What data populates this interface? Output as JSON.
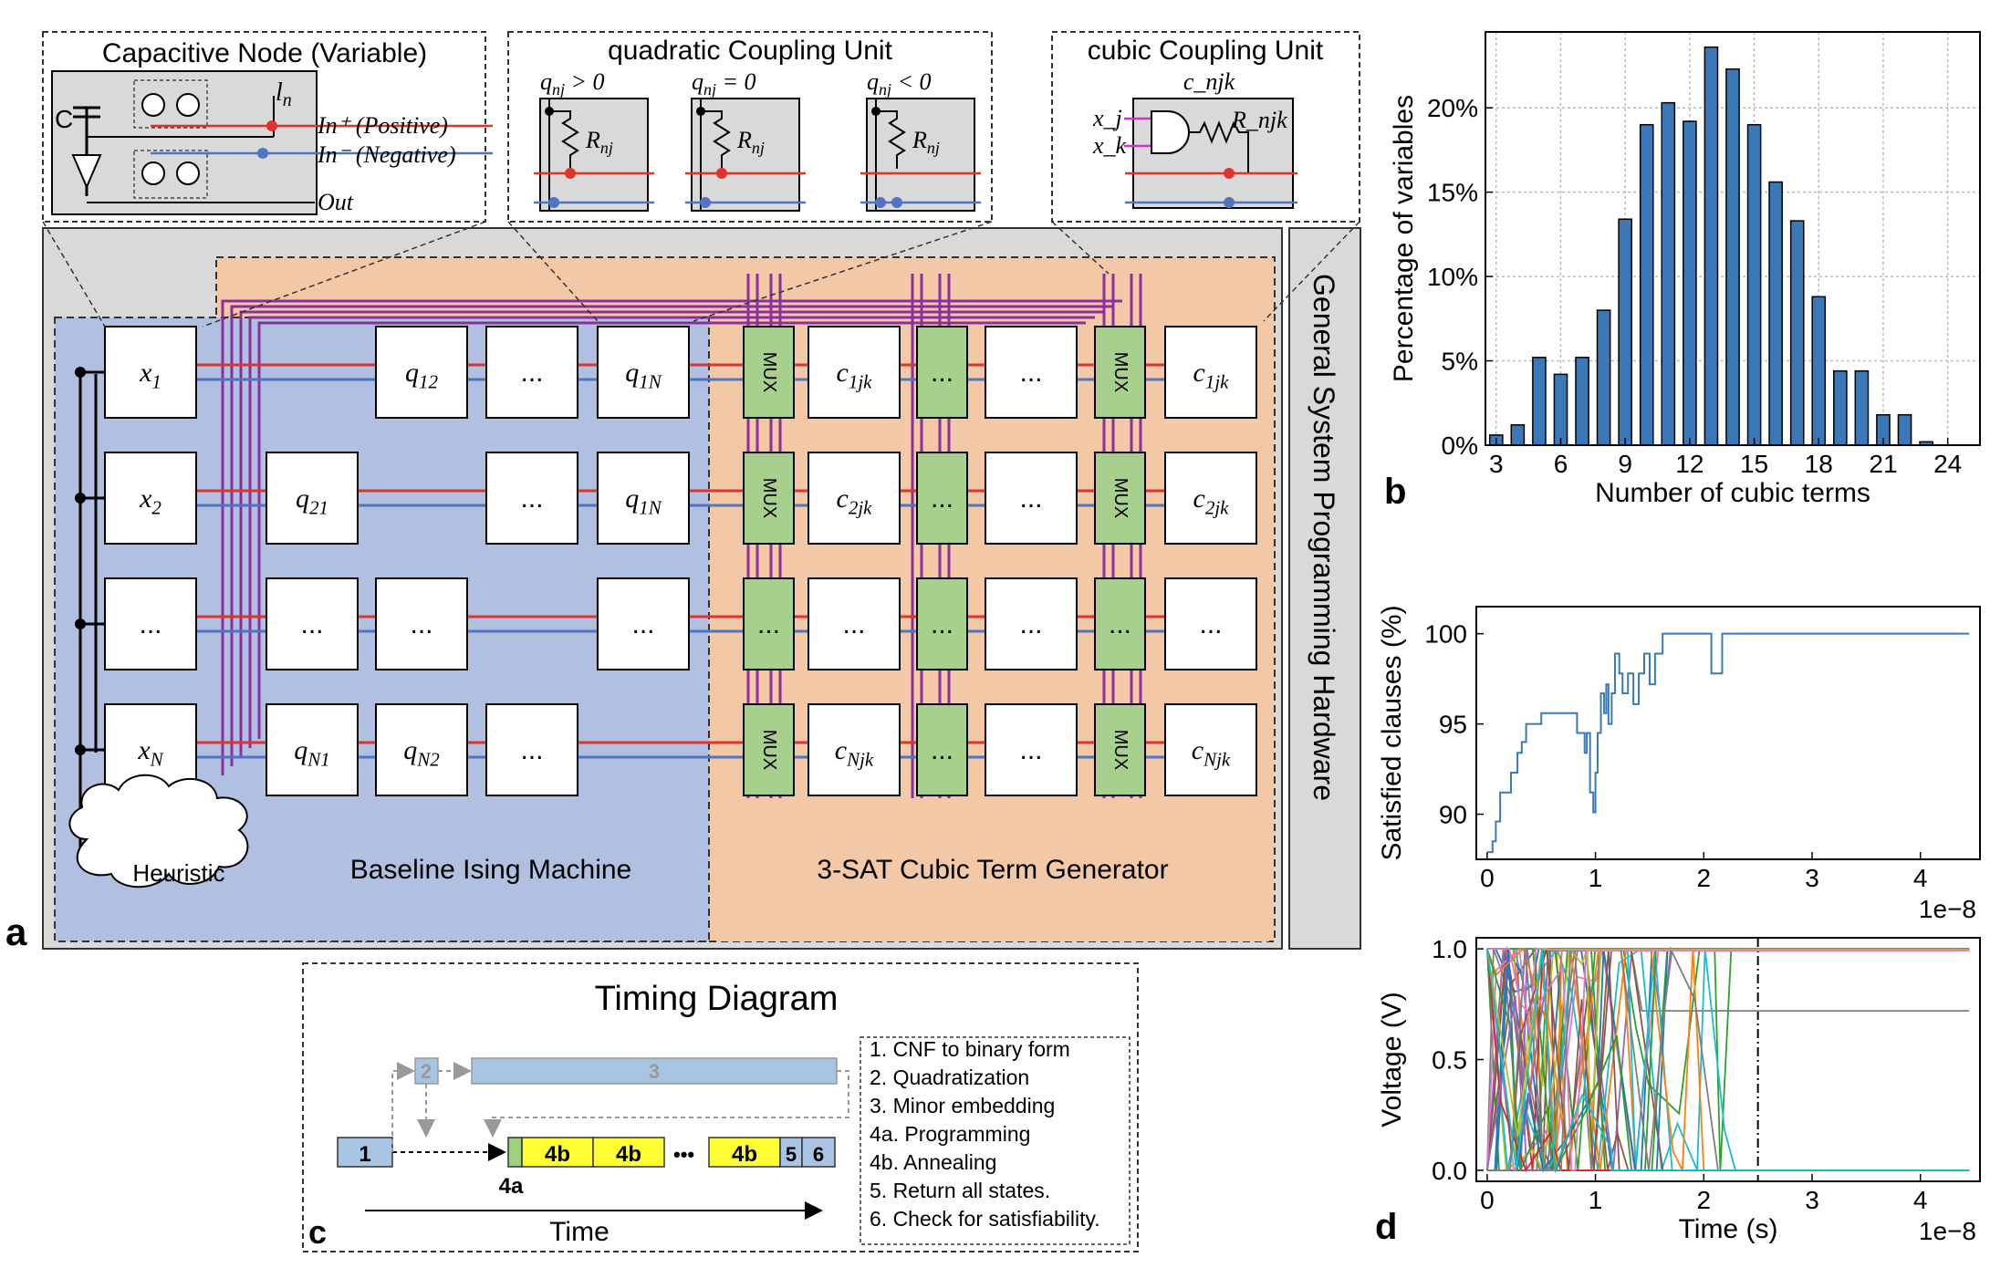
{
  "panel_letters": {
    "a": "a",
    "b": "b",
    "c": "c",
    "d": "d"
  },
  "insets": {
    "cap_node": {
      "title": "Capacitive Node (Variable)",
      "c_label": "C",
      "ln_label": "l",
      "ln_sub": "n",
      "in_pos": "In⁺ (Positive)",
      "in_neg": "In⁻ (Negative)",
      "out": "Out"
    },
    "quad": {
      "title": "quadratic Coupling Unit",
      "cases": [
        "q_nj > 0",
        "q_nj = 0",
        "q_nj < 0"
      ],
      "r_label": "R_nj"
    },
    "cubic": {
      "title": "cubic Coupling Unit",
      "c_label": "c_njk",
      "xj": "x_j",
      "xk": "x_k",
      "r_label": "R_njk"
    }
  },
  "main": {
    "side_label": "General System Programming Hardware",
    "baseline_label": "Baseline Ising Machine",
    "cubic_gen_label": "3-SAT Cubic Term Generator",
    "heuristic": "Heuristic",
    "rows": [
      {
        "cells": [
          "x_1",
          "",
          "q_12",
          "...",
          "q_1N"
        ],
        "mux": "MUX",
        "c1": "c_1jk",
        "c2": "...",
        "c3": "...",
        "mux2": "MUX",
        "c4": "c_1jk"
      },
      {
        "cells": [
          "x_2",
          "q_21",
          "",
          "...",
          "q_1N"
        ],
        "mux": "MUX",
        "c1": "c_2jk",
        "c2": "...",
        "c3": "...",
        "mux2": "MUX",
        "c4": "c_2jk"
      },
      {
        "cells": [
          "...",
          "...",
          "...",
          "",
          "..."
        ],
        "mux": "...",
        "c1": "...",
        "c2": "...",
        "c3": "...",
        "mux2": "...",
        "c4": "..."
      },
      {
        "cells": [
          "x_N",
          "q_N1",
          "q_N2",
          "...",
          ""
        ],
        "mux": "MUX",
        "c1": "c_Njk",
        "c2": "...",
        "c3": "...",
        "mux2": "MUX",
        "c4": "c_Njk"
      }
    ]
  },
  "timing": {
    "title": "Timing Diagram",
    "blocks": {
      "b1": "1",
      "b2": "2",
      "b3": "3",
      "b4a": "4a",
      "b4b": "4b",
      "b5": "5",
      "b6": "6",
      "dots": "•••"
    },
    "legend": [
      "1. CNF to binary form",
      "2. Quadratization",
      "3. Minor embedding",
      "4a. Programming",
      "4b. Annealing",
      "5. Return all states.",
      "6. Check for satisfiability."
    ],
    "time_label": "Time",
    "colors": {
      "blue": "#a7c4e2",
      "yellow": "#ffff33",
      "green": "#9bd17f"
    }
  },
  "chart_data": [
    {
      "type": "bar",
      "xlabel": "Number of cubic terms",
      "ylabel": "Percentage of variables",
      "x": [
        3,
        4,
        5,
        6,
        7,
        8,
        9,
        10,
        11,
        12,
        13,
        14,
        15,
        16,
        17,
        18,
        19,
        20,
        21,
        22,
        23
      ],
      "values": [
        0.6,
        1.2,
        5.2,
        4.2,
        5.2,
        8.0,
        13.4,
        19.0,
        20.3,
        19.2,
        23.6,
        22.3,
        19.0,
        15.6,
        13.3,
        8.8,
        4.4,
        4.4,
        1.8,
        1.8,
        0.2
      ],
      "xticks": [
        "3",
        "6",
        "9",
        "12",
        "15",
        "18",
        "21",
        "24"
      ],
      "yticks": [
        "0%",
        "5%",
        "10%",
        "15%",
        "20%"
      ],
      "xlim": [
        2.5,
        25.5
      ],
      "ylim": [
        0,
        24.5
      ],
      "grid": true,
      "color": "#3a78b8"
    },
    {
      "type": "line",
      "ylabel": "Satisfied clauses (%)",
      "x_multiplier": "1e−8",
      "xticks": [
        "0",
        "1",
        "2",
        "3",
        "4"
      ],
      "yticks": [
        "90",
        "95",
        "100"
      ],
      "xlim": [
        -0.1,
        4.55
      ],
      "ylim": [
        87.5,
        101.5
      ],
      "color": "#3a78b8",
      "points": [
        [
          0,
          87.9
        ],
        [
          0.05,
          88.5
        ],
        [
          0.08,
          89.6
        ],
        [
          0.12,
          91.2
        ],
        [
          0.2,
          91.2
        ],
        [
          0.22,
          92.3
        ],
        [
          0.28,
          93.4
        ],
        [
          0.32,
          94.0
        ],
        [
          0.36,
          95.0
        ],
        [
          0.5,
          95.6
        ],
        [
          0.8,
          95.6
        ],
        [
          0.83,
          94.5
        ],
        [
          0.9,
          93.4
        ],
        [
          0.92,
          94.5
        ],
        [
          0.95,
          91.2
        ],
        [
          0.98,
          90.1
        ],
        [
          1.0,
          92.3
        ],
        [
          1.02,
          94.5
        ],
        [
          1.05,
          96.7
        ],
        [
          1.08,
          95.6
        ],
        [
          1.1,
          97.2
        ],
        [
          1.12,
          95.0
        ],
        [
          1.15,
          96.7
        ],
        [
          1.18,
          98.9
        ],
        [
          1.22,
          97.8
        ],
        [
          1.25,
          96.7
        ],
        [
          1.3,
          97.8
        ],
        [
          1.35,
          96.1
        ],
        [
          1.4,
          97.8
        ],
        [
          1.45,
          98.9
        ],
        [
          1.5,
          97.2
        ],
        [
          1.55,
          98.9
        ],
        [
          1.62,
          100.0
        ],
        [
          2.05,
          100.0
        ],
        [
          2.07,
          97.8
        ],
        [
          2.15,
          97.8
        ],
        [
          2.17,
          100.0
        ],
        [
          4.45,
          100.0
        ]
      ]
    },
    {
      "type": "line",
      "ylabel": "Voltage (V)",
      "xlabel": "Time (s)",
      "x_multiplier": "1e−8",
      "xticks": [
        "0",
        "1",
        "2",
        "3",
        "4"
      ],
      "yticks": [
        "0.0",
        "0.5",
        "1.0"
      ],
      "xlim": [
        -0.1,
        4.55
      ],
      "ylim": [
        -0.05,
        1.05
      ],
      "vline": 2.5,
      "series_colors": [
        "#1f77b4",
        "#ff7f0e",
        "#2ca02c",
        "#d62728",
        "#9467bd",
        "#8c564b",
        "#e377c2",
        "#7f7f7f",
        "#bcbd22",
        "#17becf"
      ]
    }
  ]
}
